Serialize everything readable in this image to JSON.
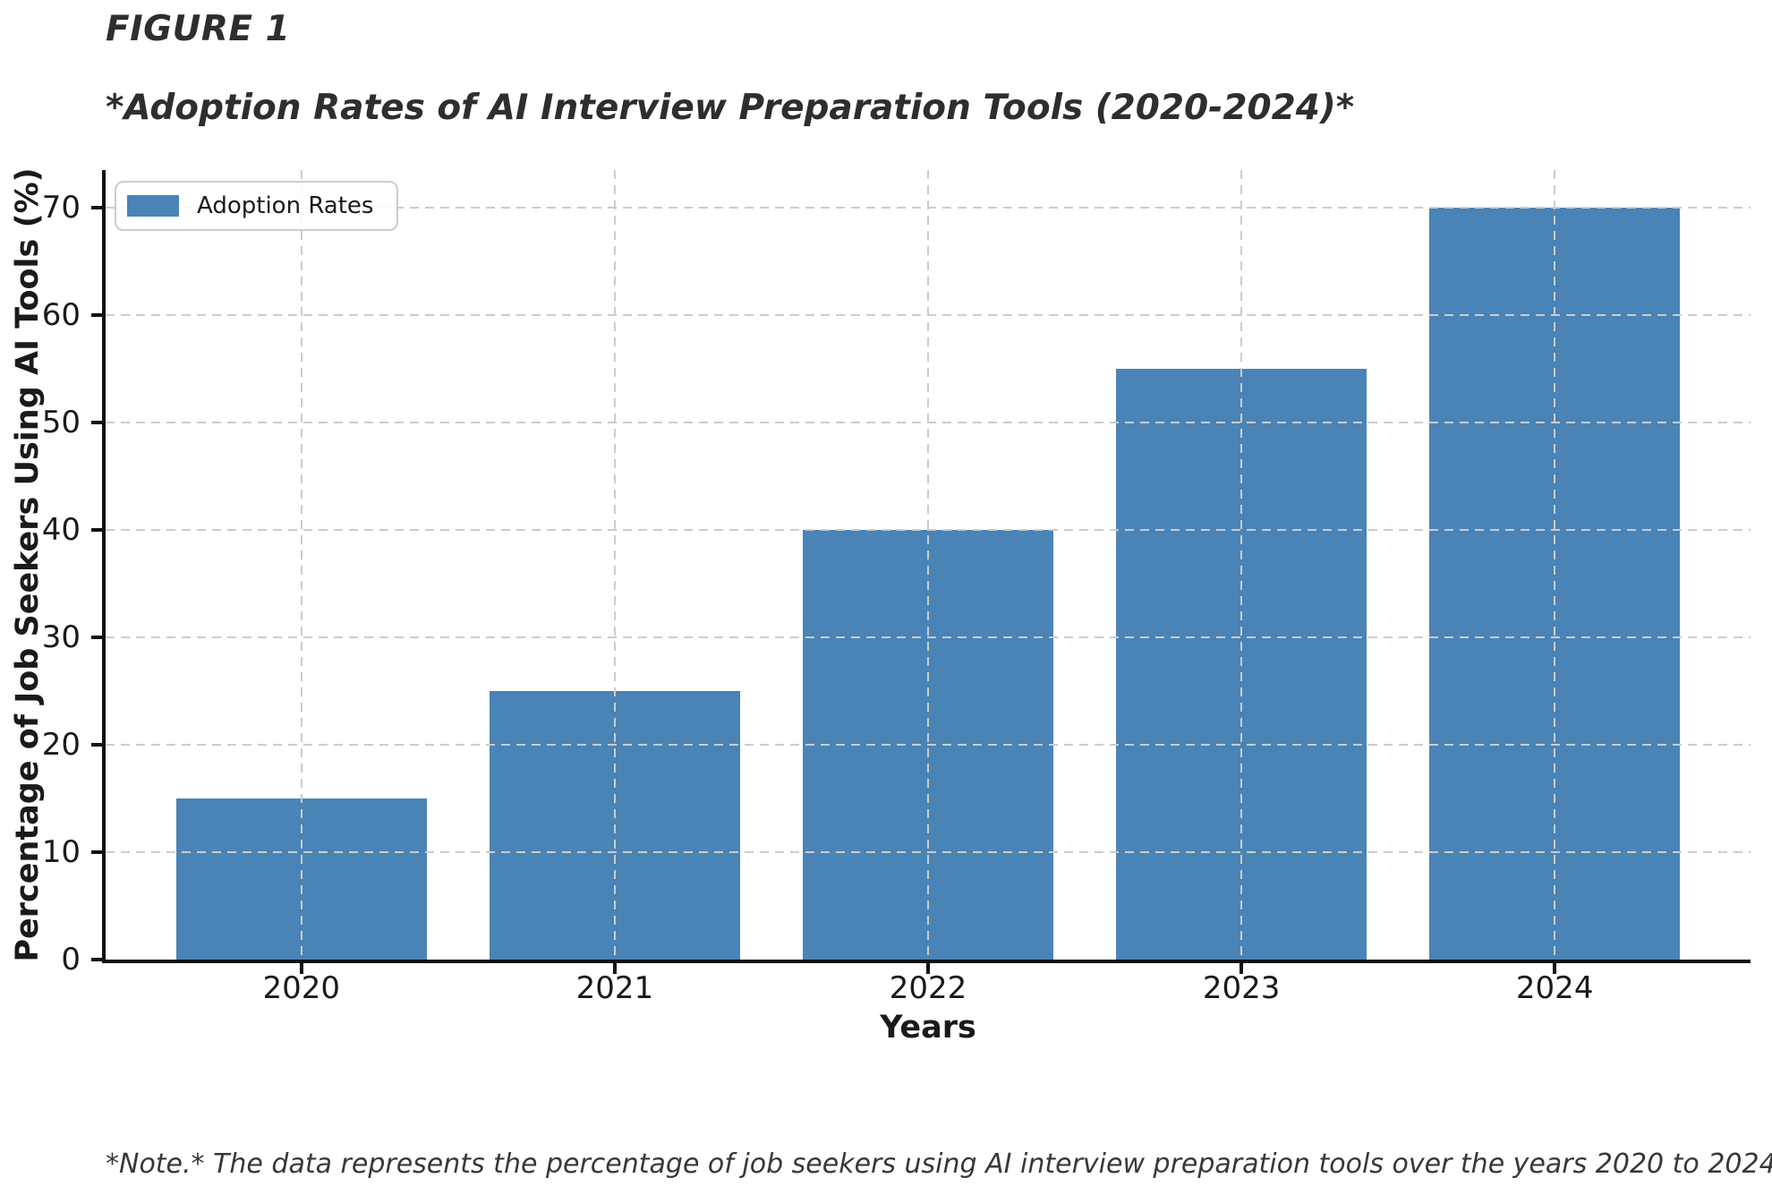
{
  "figure": {
    "label": "FIGURE 1",
    "note": "*Note.* The data represents the percentage of job seekers using AI interview preparation tools over the years 2020 to 2024."
  },
  "chart_data": {
    "type": "bar",
    "title": "FIGURE 1",
    "subtitle": "*Adoption Rates of AI Interview Preparation Tools (2020-2024)*",
    "categories": [
      "2020",
      "2021",
      "2022",
      "2023",
      "2024"
    ],
    "series": [
      {
        "name": "Adoption Rates",
        "values": [
          15,
          25,
          40,
          55,
          70
        ]
      }
    ],
    "xlabel": "Years",
    "ylabel": "Percentage of Job Seekers Using AI Tools (%)",
    "ylim": [
      0,
      73.5
    ],
    "yticks": [
      0,
      10,
      20,
      30,
      40,
      50,
      60,
      70
    ],
    "grid": {
      "visible": true,
      "style": "dashed",
      "axes": "both",
      "above_bars": true
    },
    "legend": {
      "labels": [
        "Adoption Rates"
      ],
      "position": "upper left"
    },
    "colors": {
      "bar": "#4a83b5",
      "grid": "#cccccc",
      "spine": "#111111",
      "tick_text": "#1a1a1a",
      "title_text": "#2e2e2e"
    },
    "note": "*Note.* The data represents the percentage of job seekers using AI interview preparation tools over the years 2020 to 2024."
  }
}
